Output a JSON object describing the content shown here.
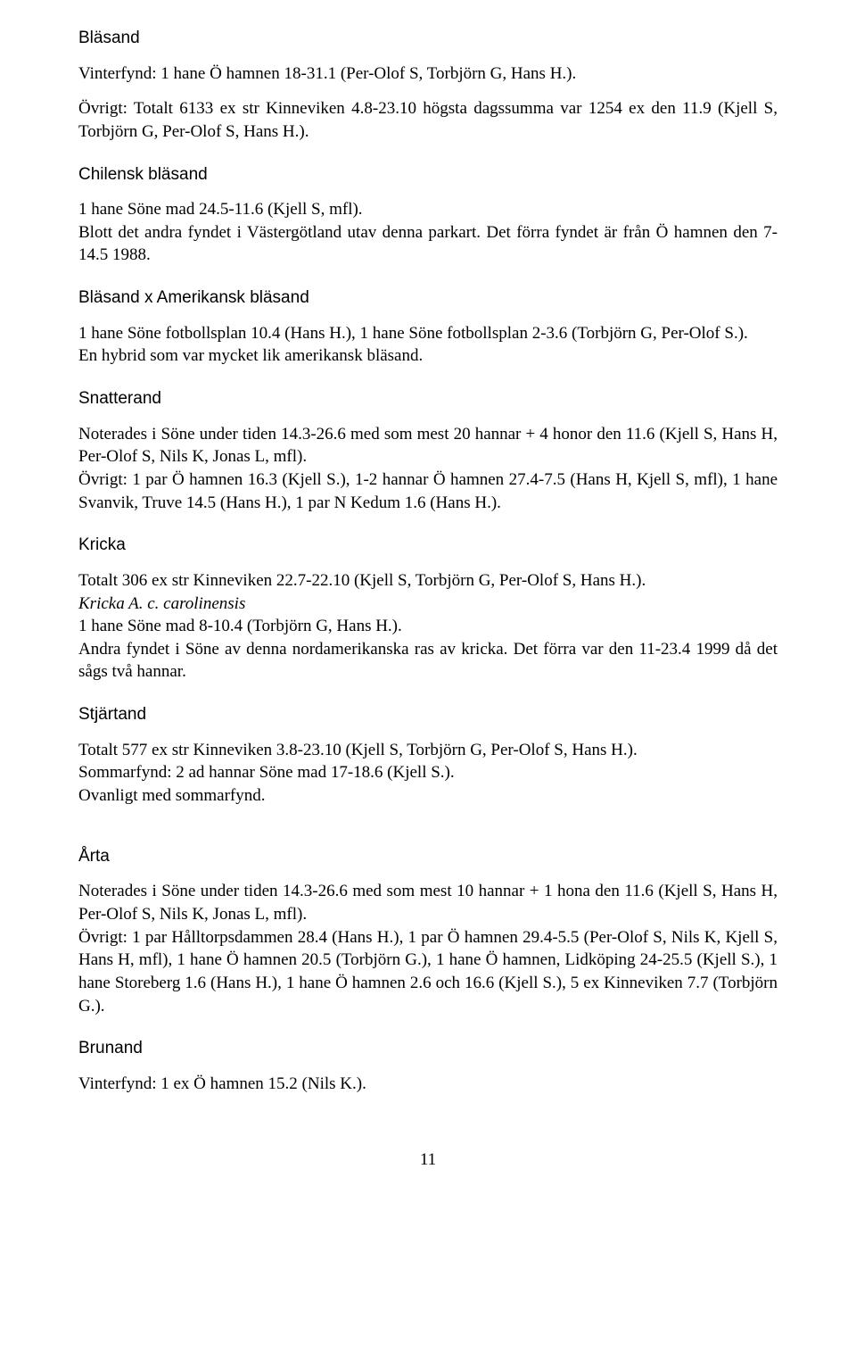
{
  "blasand": {
    "title": "Bläsand",
    "p1": "Vinterfynd: 1 hane Ö hamnen 18-31.1 (Per-Olof S, Torbjörn G, Hans H.).",
    "p2": "Övrigt: Totalt 6133 ex str Kinneviken 4.8-23.10 högsta dagssumma var 1254 ex den 11.9 (Kjell S, Torbjörn G, Per-Olof S, Hans H.)."
  },
  "chilensk": {
    "title": "Chilensk bläsand",
    "p1": "1 hane Söne mad 24.5-11.6 (Kjell S, mfl).",
    "p2": "Blott det andra fyndet i Västergötland utav denna parkart. Det förra fyndet är från Ö hamnen den 7-14.5 1988."
  },
  "hybrid": {
    "title": "Bläsand x Amerikansk bläsand",
    "p1": "1 hane Söne fotbollsplan 10.4 (Hans H.), 1 hane Söne fotbollsplan 2-3.6 (Torbjörn G, Per-Olof S.).",
    "p2": "En hybrid som var mycket lik amerikansk bläsand."
  },
  "snatterand": {
    "title": "Snatterand",
    "p1": "Noterades i Söne under tiden 14.3-26.6 med som mest 20 hannar + 4 honor den 11.6 (Kjell S, Hans H, Per-Olof S, Nils K, Jonas L, mfl).",
    "p2": "Övrigt: 1 par Ö hamnen 16.3 (Kjell S.), 1-2 hannar Ö hamnen 27.4-7.5 (Hans H, Kjell S, mfl), 1 hane Svanvik, Truve 14.5 (Hans H.), 1 par N Kedum 1.6 (Hans H.)."
  },
  "kricka": {
    "title": "Kricka",
    "p1": "Totalt 306 ex str Kinneviken 22.7-22.10 (Kjell S, Torbjörn G, Per-Olof S, Hans H.).",
    "sub_italic": "Kricka A. c. carolinensis",
    "p2": "1 hane Söne mad 8-10.4 (Torbjörn G, Hans H.).",
    "p3": "Andra fyndet i Söne av denna nordamerikanska ras av kricka. Det förra var den 11-23.4 1999 då det sågs två hannar."
  },
  "stjartand": {
    "title": "Stjärtand",
    "p1": "Totalt 577 ex str Kinneviken 3.8-23.10 (Kjell S, Torbjörn G, Per-Olof S, Hans H.).",
    "p2": "Sommarfynd: 2 ad hannar Söne mad 17-18.6 (Kjell S.).",
    "p3": "Ovanligt med sommarfynd."
  },
  "arta": {
    "title": "Årta",
    "p1": "Noterades i Söne under tiden 14.3-26.6 med som mest 10 hannar + 1 hona den 11.6 (Kjell S, Hans H, Per-Olof S, Nils K, Jonas L, mfl).",
    "p2": "Övrigt: 1 par Hålltorpsdammen 28.4 (Hans H.), 1 par Ö hamnen 29.4-5.5 (Per-Olof S, Nils K, Kjell S, Hans H, mfl), 1 hane Ö hamnen 20.5 (Torbjörn G.), 1 hane Ö hamnen, Lidköping 24-25.5 (Kjell S.), 1 hane Storeberg 1.6 (Hans H.), 1 hane Ö hamnen 2.6 och 16.6 (Kjell S.), 5 ex Kinneviken 7.7 (Torbjörn G.)."
  },
  "brunand": {
    "title": "Brunand",
    "p1": "Vinterfynd: 1 ex Ö hamnen 15.2 (Nils K.)."
  },
  "page_number": "11"
}
